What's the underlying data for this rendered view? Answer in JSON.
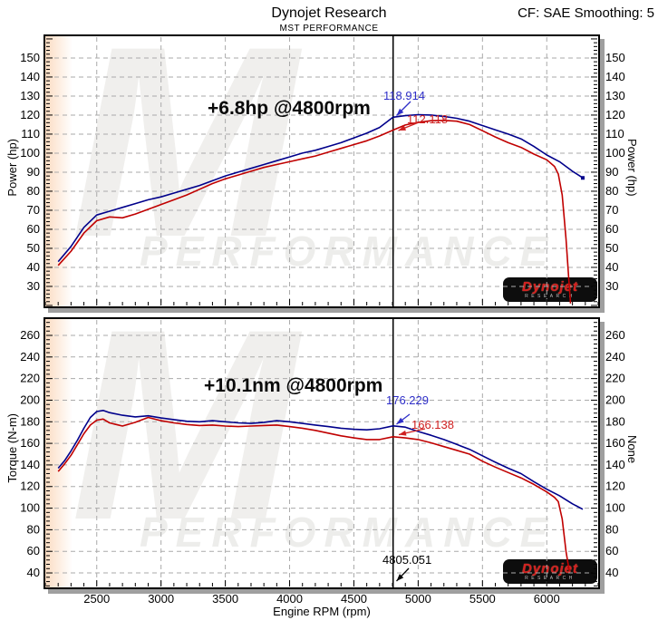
{
  "header": {
    "title": "Dynojet Research",
    "subtitle": "MST PERFORMANCE",
    "smoothing": "CF: SAE Smoothing: 5"
  },
  "watermark": {
    "brand_letter": "M",
    "text": "PERFORMANCE"
  },
  "logo": {
    "main": "Dynojet",
    "sub": "RESEARCH"
  },
  "cursor": {
    "rpm": 4805.051,
    "label": "4805.051"
  },
  "colors": {
    "after": "#00008b",
    "before": "#c00000",
    "label_after": "#2e2ec8",
    "label_before": "#cf2020",
    "grid": "#aaaaaa"
  },
  "chart_data": [
    {
      "type": "line",
      "annotation": "+6.8hp @4800rpm",
      "ylabel_left": "Power (hp)",
      "ylabel_right": "Power (hp)",
      "xlabel": "",
      "xlim": [
        2100,
        6400
      ],
      "ylim": [
        19.5,
        161.4
      ],
      "xticks": [
        2500,
        3000,
        3500,
        4000,
        4500,
        5000,
        5500,
        6000
      ],
      "yticks": [
        30,
        40,
        50,
        60,
        70,
        80,
        90,
        100,
        110,
        120,
        130,
        140,
        150
      ],
      "x_minor": 100,
      "y_minor": 2,
      "x_major_step": 500,
      "y_major_step": 10,
      "grid": true,
      "show_x_labels": false,
      "cursor_readout": {
        "after": "118.914",
        "before": "112.118"
      },
      "series": [
        {
          "name": "after",
          "color": "#00008b",
          "end_dot": true,
          "points": [
            [
              2200,
              43
            ],
            [
              2300,
              51
            ],
            [
              2400,
              61
            ],
            [
              2500,
              67.5
            ],
            [
              2600,
              69.5
            ],
            [
              2700,
              71.5
            ],
            [
              2800,
              73.5
            ],
            [
              2900,
              75.5
            ],
            [
              3000,
              77
            ],
            [
              3100,
              79
            ],
            [
              3200,
              81
            ],
            [
              3300,
              83
            ],
            [
              3400,
              85.5
            ],
            [
              3500,
              88
            ],
            [
              3600,
              90
            ],
            [
              3700,
              92
            ],
            [
              3800,
              94
            ],
            [
              3900,
              96
            ],
            [
              4000,
              98
            ],
            [
              4100,
              100
            ],
            [
              4200,
              101.5
            ],
            [
              4300,
              103.5
            ],
            [
              4400,
              105.5
            ],
            [
              4500,
              108
            ],
            [
              4600,
              110.5
            ],
            [
              4700,
              113.5
            ],
            [
              4805,
              118.9
            ],
            [
              4900,
              119.7
            ],
            [
              5000,
              120.2
            ],
            [
              5100,
              120
            ],
            [
              5200,
              119.3
            ],
            [
              5300,
              118.3
            ],
            [
              5400,
              116.8
            ],
            [
              5500,
              114.5
            ],
            [
              5600,
              112.2
            ],
            [
              5700,
              110
            ],
            [
              5800,
              107.5
            ],
            [
              5900,
              103.5
            ],
            [
              6000,
              99
            ],
            [
              6100,
              95.5
            ],
            [
              6200,
              90.5
            ],
            [
              6280,
              87
            ]
          ]
        },
        {
          "name": "before",
          "color": "#c00000",
          "end_dot": false,
          "points": [
            [
              2200,
              41
            ],
            [
              2300,
              48.5
            ],
            [
              2400,
              58
            ],
            [
              2500,
              64.5
            ],
            [
              2600,
              66.5
            ],
            [
              2700,
              66
            ],
            [
              2800,
              68
            ],
            [
              2900,
              70.5
            ],
            [
              3000,
              73
            ],
            [
              3100,
              75.5
            ],
            [
              3200,
              78
            ],
            [
              3300,
              81
            ],
            [
              3400,
              84
            ],
            [
              3500,
              86.5
            ],
            [
              3600,
              88.5
            ],
            [
              3700,
              90.5
            ],
            [
              3800,
              92.5
            ],
            [
              3900,
              94
            ],
            [
              4000,
              95.5
            ],
            [
              4100,
              97
            ],
            [
              4200,
              98.5
            ],
            [
              4300,
              100.5
            ],
            [
              4400,
              102.5
            ],
            [
              4500,
              104.5
            ],
            [
              4600,
              106.5
            ],
            [
              4700,
              109
            ],
            [
              4805,
              112.1
            ],
            [
              4900,
              114.8
            ],
            [
              5000,
              116.2
            ],
            [
              5100,
              117
            ],
            [
              5200,
              117.2
            ],
            [
              5300,
              116.8
            ],
            [
              5400,
              115
            ],
            [
              5500,
              111.8
            ],
            [
              5600,
              108.5
            ],
            [
              5700,
              105.5
            ],
            [
              5800,
              103
            ],
            [
              5900,
              99.5
            ],
            [
              6000,
              96.5
            ],
            [
              6060,
              93
            ],
            [
              6090,
              89
            ],
            [
              6120,
              78
            ],
            [
              6150,
              55
            ],
            [
              6170,
              35
            ],
            [
              6185,
              21
            ]
          ]
        }
      ]
    },
    {
      "type": "line",
      "annotation": "+10.1nm @4800rpm",
      "ylabel_left": "Torque (N-m)",
      "ylabel_right": "None",
      "xlabel": "Engine RPM (rpm)",
      "xlim": [
        2100,
        6400
      ],
      "ylim": [
        26.6,
        275.1
      ],
      "xticks": [
        2500,
        3000,
        3500,
        4000,
        4500,
        5000,
        5500,
        6000
      ],
      "yticks": [
        40,
        60,
        80,
        100,
        120,
        140,
        160,
        180,
        200,
        220,
        240,
        260
      ],
      "x_minor": 100,
      "y_minor": 4,
      "x_major_step": 500,
      "y_major_step": 20,
      "grid": true,
      "show_x_labels": true,
      "cursor_readout": {
        "after": "176.229",
        "before": "166.138"
      },
      "series": [
        {
          "name": "after",
          "color": "#00008b",
          "end_dot": false,
          "points": [
            [
              2200,
              137
            ],
            [
              2250,
              144
            ],
            [
              2300,
              153
            ],
            [
              2350,
              163
            ],
            [
              2400,
              174
            ],
            [
              2450,
              184
            ],
            [
              2500,
              189.5
            ],
            [
              2550,
              190.5
            ],
            [
              2600,
              188.5
            ],
            [
              2700,
              186
            ],
            [
              2800,
              184.5
            ],
            [
              2900,
              185.5
            ],
            [
              3000,
              183.5
            ],
            [
              3100,
              182
            ],
            [
              3200,
              180.5
            ],
            [
              3300,
              180
            ],
            [
              3400,
              181
            ],
            [
              3500,
              180
            ],
            [
              3600,
              179
            ],
            [
              3700,
              178.5
            ],
            [
              3800,
              179.5
            ],
            [
              3900,
              181
            ],
            [
              4000,
              180
            ],
            [
              4100,
              178.5
            ],
            [
              4200,
              177
            ],
            [
              4300,
              175.5
            ],
            [
              4400,
              174
            ],
            [
              4500,
              173
            ],
            [
              4600,
              172.5
            ],
            [
              4700,
              173.5
            ],
            [
              4805,
              176.2
            ],
            [
              4900,
              175
            ],
            [
              5000,
              171
            ],
            [
              5100,
              167.5
            ],
            [
              5200,
              163.5
            ],
            [
              5300,
              159
            ],
            [
              5400,
              154.5
            ],
            [
              5500,
              148.5
            ],
            [
              5600,
              142.5
            ],
            [
              5700,
              137
            ],
            [
              5800,
              132
            ],
            [
              5900,
              124.5
            ],
            [
              6000,
              117.5
            ],
            [
              6100,
              111.5
            ],
            [
              6200,
              104
            ],
            [
              6280,
              99
            ]
          ]
        },
        {
          "name": "before",
          "color": "#c00000",
          "end_dot": false,
          "points": [
            [
              2200,
              134
            ],
            [
              2250,
              141
            ],
            [
              2300,
              149
            ],
            [
              2350,
              159
            ],
            [
              2400,
              169
            ],
            [
              2450,
              177
            ],
            [
              2500,
              181.5
            ],
            [
              2550,
              182.5
            ],
            [
              2600,
              179
            ],
            [
              2700,
              176
            ],
            [
              2800,
              179.5
            ],
            [
              2900,
              184
            ],
            [
              3000,
              181
            ],
            [
              3100,
              179
            ],
            [
              3200,
              177.5
            ],
            [
              3300,
              176.5
            ],
            [
              3400,
              177
            ],
            [
              3500,
              176
            ],
            [
              3600,
              175.5
            ],
            [
              3700,
              176
            ],
            [
              3800,
              176.5
            ],
            [
              3900,
              177
            ],
            [
              4000,
              175.5
            ],
            [
              4100,
              174
            ],
            [
              4200,
              172
            ],
            [
              4300,
              169.5
            ],
            [
              4400,
              167
            ],
            [
              4500,
              165
            ],
            [
              4600,
              163.5
            ],
            [
              4700,
              163.5
            ],
            [
              4805,
              166.1
            ],
            [
              4900,
              165
            ],
            [
              5000,
              163.5
            ],
            [
              5100,
              160.5
            ],
            [
              5200,
              157
            ],
            [
              5300,
              153.5
            ],
            [
              5400,
              150
            ],
            [
              5500,
              143.5
            ],
            [
              5600,
              138
            ],
            [
              5700,
              133
            ],
            [
              5800,
              128
            ],
            [
              5900,
              122
            ],
            [
              6000,
              115
            ],
            [
              6060,
              110
            ],
            [
              6090,
              106
            ],
            [
              6120,
              90
            ],
            [
              6150,
              60
            ],
            [
              6175,
              42
            ]
          ]
        }
      ]
    }
  ]
}
